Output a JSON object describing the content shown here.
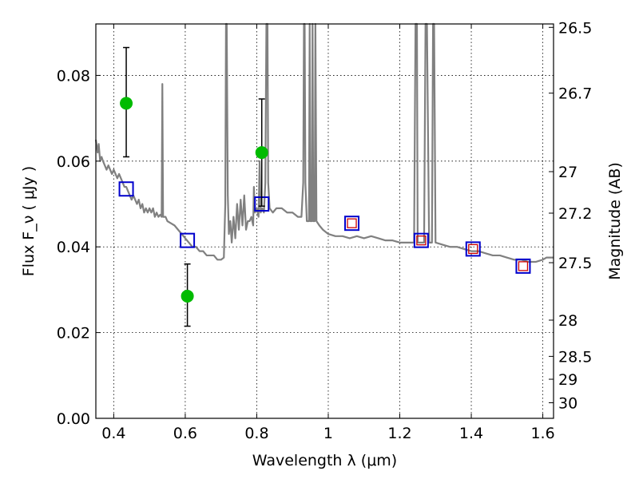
{
  "chart_data": {
    "type": "scatter",
    "title": "",
    "xlabel": "Wavelength  λ (μm)",
    "ylabel": "Flux  F_ν  ( μJy )",
    "ylabel_right": "Magnitude (AB)",
    "xlim": [
      0.35,
      1.63
    ],
    "ylim": [
      0.0,
      0.092
    ],
    "grid": true,
    "x_ticks": [
      {
        "value": 0.4,
        "label": "0.4"
      },
      {
        "value": 0.6,
        "label": "0.6"
      },
      {
        "value": 0.8,
        "label": "0.8"
      },
      {
        "value": 1.0,
        "label": "1"
      },
      {
        "value": 1.2,
        "label": "1.2"
      },
      {
        "value": 1.4,
        "label": "1.4"
      },
      {
        "value": 1.6,
        "label": "1.6"
      }
    ],
    "y_ticks": [
      {
        "value": 0.0,
        "label": "0.00"
      },
      {
        "value": 0.02,
        "label": "0.02"
      },
      {
        "value": 0.04,
        "label": "0.04"
      },
      {
        "value": 0.06,
        "label": "0.06"
      },
      {
        "value": 0.08,
        "label": "0.08"
      }
    ],
    "right_ticks": [
      {
        "mag": 26.5,
        "label": "26.5"
      },
      {
        "mag": 26.7,
        "label": "26.7"
      },
      {
        "mag": 27.0,
        "label": "27"
      },
      {
        "mag": 27.2,
        "label": "27.2"
      },
      {
        "mag": 27.5,
        "label": "27.5"
      },
      {
        "mag": 28.0,
        "label": "28"
      },
      {
        "mag": 28.5,
        "label": "28.5"
      },
      {
        "mag": 29.0,
        "label": "29"
      },
      {
        "mag": 30.0,
        "label": "30"
      }
    ],
    "series": [
      {
        "kind": "model-spectrum",
        "color": "#808080",
        "points": [
          [
            0.35,
            0.065
          ],
          [
            0.355,
            0.062
          ],
          [
            0.358,
            0.064
          ],
          [
            0.362,
            0.06
          ],
          [
            0.366,
            0.061
          ],
          [
            0.37,
            0.06
          ],
          [
            0.375,
            0.059
          ],
          [
            0.38,
            0.058
          ],
          [
            0.385,
            0.059
          ],
          [
            0.39,
            0.058
          ],
          [
            0.395,
            0.057
          ],
          [
            0.4,
            0.058
          ],
          [
            0.405,
            0.057
          ],
          [
            0.41,
            0.056
          ],
          [
            0.415,
            0.057
          ],
          [
            0.42,
            0.056
          ],
          [
            0.425,
            0.055
          ],
          [
            0.43,
            0.054
          ],
          [
            0.435,
            0.054
          ],
          [
            0.44,
            0.053
          ],
          [
            0.445,
            0.052
          ],
          [
            0.45,
            0.051
          ],
          [
            0.455,
            0.052
          ],
          [
            0.46,
            0.051
          ],
          [
            0.465,
            0.05
          ],
          [
            0.47,
            0.051
          ],
          [
            0.475,
            0.049
          ],
          [
            0.48,
            0.05
          ],
          [
            0.485,
            0.048
          ],
          [
            0.49,
            0.049
          ],
          [
            0.495,
            0.048
          ],
          [
            0.5,
            0.049
          ],
          [
            0.505,
            0.048
          ],
          [
            0.51,
            0.049
          ],
          [
            0.515,
            0.047
          ],
          [
            0.52,
            0.048
          ],
          [
            0.525,
            0.047
          ],
          [
            0.53,
            0.0475
          ],
          [
            0.534,
            0.047
          ],
          [
            0.536,
            0.078
          ],
          [
            0.538,
            0.047
          ],
          [
            0.545,
            0.047
          ],
          [
            0.55,
            0.046
          ],
          [
            0.56,
            0.0455
          ],
          [
            0.57,
            0.045
          ],
          [
            0.58,
            0.044
          ],
          [
            0.59,
            0.043
          ],
          [
            0.6,
            0.042
          ],
          [
            0.61,
            0.041
          ],
          [
            0.62,
            0.04
          ],
          [
            0.63,
            0.04
          ],
          [
            0.64,
            0.039
          ],
          [
            0.65,
            0.039
          ],
          [
            0.66,
            0.038
          ],
          [
            0.67,
            0.038
          ],
          [
            0.68,
            0.038
          ],
          [
            0.69,
            0.037
          ],
          [
            0.7,
            0.037
          ],
          [
            0.708,
            0.0375
          ],
          [
            0.712,
            0.05
          ],
          [
            0.714,
            0.092
          ],
          [
            0.716,
            0.092
          ],
          [
            0.719,
            0.052
          ],
          [
            0.722,
            0.043
          ],
          [
            0.726,
            0.046
          ],
          [
            0.73,
            0.041
          ],
          [
            0.735,
            0.047
          ],
          [
            0.74,
            0.042
          ],
          [
            0.745,
            0.05
          ],
          [
            0.75,
            0.044
          ],
          [
            0.755,
            0.051
          ],
          [
            0.76,
            0.045
          ],
          [
            0.765,
            0.052
          ],
          [
            0.77,
            0.044
          ],
          [
            0.775,
            0.046
          ],
          [
            0.78,
            0.046
          ],
          [
            0.785,
            0.047
          ],
          [
            0.79,
            0.045
          ],
          [
            0.792,
            0.054
          ],
          [
            0.795,
            0.048
          ],
          [
            0.8,
            0.049
          ],
          [
            0.805,
            0.047
          ],
          [
            0.808,
            0.06
          ],
          [
            0.811,
            0.048
          ],
          [
            0.815,
            0.049
          ],
          [
            0.82,
            0.048
          ],
          [
            0.824,
            0.055
          ],
          [
            0.827,
            0.092
          ],
          [
            0.83,
            0.092
          ],
          [
            0.832,
            0.055
          ],
          [
            0.836,
            0.049
          ],
          [
            0.845,
            0.048
          ],
          [
            0.855,
            0.049
          ],
          [
            0.87,
            0.049
          ],
          [
            0.885,
            0.048
          ],
          [
            0.9,
            0.048
          ],
          [
            0.915,
            0.047
          ],
          [
            0.925,
            0.047
          ],
          [
            0.93,
            0.055
          ],
          [
            0.932,
            0.092
          ],
          [
            0.934,
            0.092
          ],
          [
            0.936,
            0.055
          ],
          [
            0.94,
            0.046
          ],
          [
            0.946,
            0.046
          ],
          [
            0.948,
            0.092
          ],
          [
            0.95,
            0.046
          ],
          [
            0.954,
            0.046
          ],
          [
            0.956,
            0.092
          ],
          [
            0.958,
            0.046
          ],
          [
            0.962,
            0.046
          ],
          [
            0.964,
            0.092
          ],
          [
            0.967,
            0.046
          ],
          [
            0.975,
            0.045
          ],
          [
            0.985,
            0.044
          ],
          [
            1.0,
            0.043
          ],
          [
            1.02,
            0.0425
          ],
          [
            1.04,
            0.0425
          ],
          [
            1.06,
            0.042
          ],
          [
            1.08,
            0.0425
          ],
          [
            1.1,
            0.042
          ],
          [
            1.12,
            0.0425
          ],
          [
            1.14,
            0.042
          ],
          [
            1.16,
            0.0415
          ],
          [
            1.18,
            0.0415
          ],
          [
            1.2,
            0.041
          ],
          [
            1.22,
            0.041
          ],
          [
            1.24,
            0.041
          ],
          [
            1.244,
            0.092
          ],
          [
            1.248,
            0.092
          ],
          [
            1.25,
            0.041
          ],
          [
            1.26,
            0.041
          ],
          [
            1.268,
            0.041
          ],
          [
            1.272,
            0.092
          ],
          [
            1.276,
            0.092
          ],
          [
            1.282,
            0.041
          ],
          [
            1.29,
            0.041
          ],
          [
            1.293,
            0.092
          ],
          [
            1.296,
            0.092
          ],
          [
            1.3,
            0.041
          ],
          [
            1.32,
            0.0405
          ],
          [
            1.34,
            0.04
          ],
          [
            1.36,
            0.04
          ],
          [
            1.38,
            0.0395
          ],
          [
            1.4,
            0.039
          ],
          [
            1.42,
            0.039
          ],
          [
            1.44,
            0.0385
          ],
          [
            1.46,
            0.038
          ],
          [
            1.48,
            0.038
          ],
          [
            1.5,
            0.0375
          ],
          [
            1.52,
            0.037
          ],
          [
            1.54,
            0.037
          ],
          [
            1.56,
            0.0365
          ],
          [
            1.58,
            0.0365
          ],
          [
            1.6,
            0.037
          ],
          [
            1.61,
            0.0375
          ],
          [
            1.62,
            0.0375
          ],
          [
            1.63,
            0.0375
          ]
        ]
      },
      {
        "kind": "model-photometry",
        "marker": "square",
        "stroke": "#0000cc",
        "points": [
          {
            "x": 0.435,
            "y": 0.0535
          },
          {
            "x": 0.606,
            "y": 0.0415
          },
          {
            "x": 0.814,
            "y": 0.05
          },
          {
            "x": 1.066,
            "y": 0.0455
          },
          {
            "x": 1.26,
            "y": 0.0415
          },
          {
            "x": 1.405,
            "y": 0.0395
          },
          {
            "x": 1.545,
            "y": 0.0355
          }
        ]
      },
      {
        "kind": "observed-photometry",
        "marker": "square",
        "stroke": "#cc0000",
        "points": [
          {
            "x": 1.066,
            "y": 0.0455
          },
          {
            "x": 1.26,
            "y": 0.0415
          },
          {
            "x": 1.405,
            "y": 0.0395
          },
          {
            "x": 1.545,
            "y": 0.0355
          }
        ]
      },
      {
        "kind": "observed-photometry-with-errors",
        "marker": "circle",
        "fill": "#00bb00",
        "points": [
          {
            "x": 0.435,
            "y": 0.0735,
            "ylo": 0.061,
            "yhi": 0.0865
          },
          {
            "x": 0.606,
            "y": 0.0285,
            "ylo": 0.0215,
            "yhi": 0.036
          },
          {
            "x": 0.814,
            "y": 0.062,
            "ylo": 0.0495,
            "yhi": 0.0745
          }
        ]
      }
    ]
  }
}
